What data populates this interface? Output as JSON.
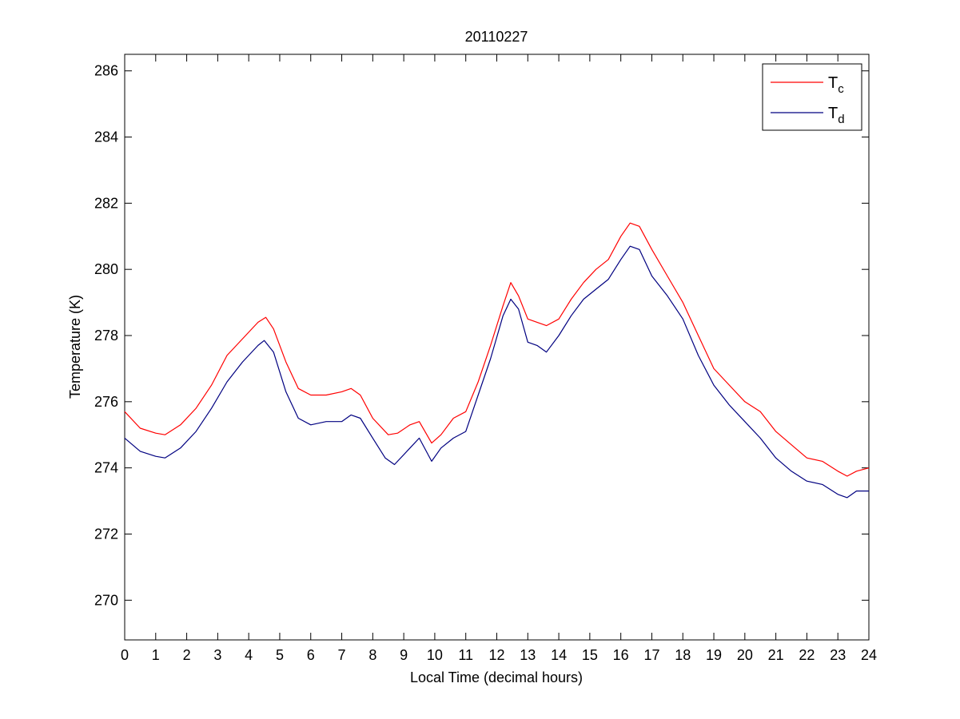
{
  "chart_data": {
    "type": "line",
    "title": "20110227",
    "xlabel": "Local Time (decimal hours)",
    "ylabel": "Temperature (K)",
    "xlim": [
      0,
      24
    ],
    "ylim": [
      268.8,
      286.5
    ],
    "xticks": [
      "0",
      "1",
      "2",
      "3",
      "4",
      "5",
      "6",
      "7",
      "8",
      "9",
      "10",
      "11",
      "12",
      "13",
      "14",
      "15",
      "16",
      "17",
      "18",
      "19",
      "20",
      "21",
      "22",
      "23",
      "24"
    ],
    "yticks": [
      "270",
      "272",
      "274",
      "276",
      "278",
      "280",
      "282",
      "284",
      "286"
    ],
    "grid": false,
    "legend_position": "top-right",
    "series": [
      {
        "name": "T",
        "name_subscript": "c",
        "color": "#ff0000",
        "x": [
          0,
          0.5,
          1,
          1.3,
          1.8,
          2.3,
          2.8,
          3.3,
          3.8,
          4.3,
          4.55,
          4.8,
          5.2,
          5.6,
          6,
          6.5,
          7,
          7.3,
          7.6,
          8,
          8.5,
          8.8,
          9.2,
          9.5,
          9.9,
          10.2,
          10.6,
          11,
          11.4,
          11.8,
          12.2,
          12.45,
          12.7,
          13,
          13.3,
          13.6,
          14,
          14.4,
          14.8,
          15.2,
          15.6,
          16,
          16.3,
          16.6,
          17,
          17.5,
          18,
          18.5,
          19,
          19.5,
          20,
          20.5,
          21,
          21.5,
          22,
          22.5,
          23,
          23.3,
          23.6,
          24
        ],
        "values": [
          275.7,
          275.2,
          275.05,
          275.0,
          275.3,
          275.8,
          276.5,
          277.4,
          277.9,
          278.4,
          278.55,
          278.2,
          277.2,
          276.4,
          276.2,
          276.2,
          276.3,
          276.4,
          276.2,
          275.5,
          275.0,
          275.05,
          275.3,
          275.4,
          274.75,
          275.0,
          275.5,
          275.7,
          276.6,
          277.7,
          278.9,
          279.6,
          279.2,
          278.5,
          278.4,
          278.3,
          278.5,
          279.1,
          279.6,
          280.0,
          280.3,
          281.0,
          281.4,
          281.3,
          280.6,
          279.8,
          279.0,
          278.0,
          277.0,
          276.5,
          276.0,
          275.7,
          275.1,
          274.7,
          274.3,
          274.2,
          273.9,
          273.75,
          273.9,
          274.0
        ]
      },
      {
        "name": "T",
        "name_subscript": "d",
        "color": "#000080",
        "x": [
          0,
          0.5,
          1,
          1.3,
          1.8,
          2.3,
          2.8,
          3.3,
          3.8,
          4.3,
          4.5,
          4.8,
          5.2,
          5.6,
          6,
          6.5,
          7,
          7.3,
          7.6,
          8,
          8.4,
          8.7,
          9.2,
          9.5,
          9.9,
          10.2,
          10.6,
          11,
          11.4,
          11.8,
          12.2,
          12.45,
          12.7,
          13,
          13.3,
          13.6,
          14,
          14.4,
          14.8,
          15.2,
          15.6,
          16,
          16.3,
          16.6,
          17,
          17.5,
          18,
          18.5,
          19,
          19.5,
          20,
          20.5,
          21,
          21.5,
          22,
          22.5,
          23,
          23.3,
          23.6,
          24
        ],
        "values": [
          274.9,
          274.5,
          274.35,
          274.3,
          274.6,
          275.1,
          275.8,
          276.6,
          277.2,
          277.7,
          277.85,
          277.5,
          276.3,
          275.5,
          275.3,
          275.4,
          275.4,
          275.6,
          275.5,
          274.9,
          274.3,
          274.1,
          274.6,
          274.9,
          274.2,
          274.6,
          274.9,
          275.1,
          276.2,
          277.3,
          278.6,
          279.1,
          278.8,
          277.8,
          277.7,
          277.5,
          278.0,
          278.6,
          279.1,
          279.4,
          279.7,
          280.3,
          280.7,
          280.6,
          279.8,
          279.2,
          278.5,
          277.4,
          276.5,
          275.9,
          275.4,
          274.9,
          274.3,
          273.9,
          273.6,
          273.5,
          273.2,
          273.1,
          273.3,
          273.3
        ]
      }
    ]
  }
}
